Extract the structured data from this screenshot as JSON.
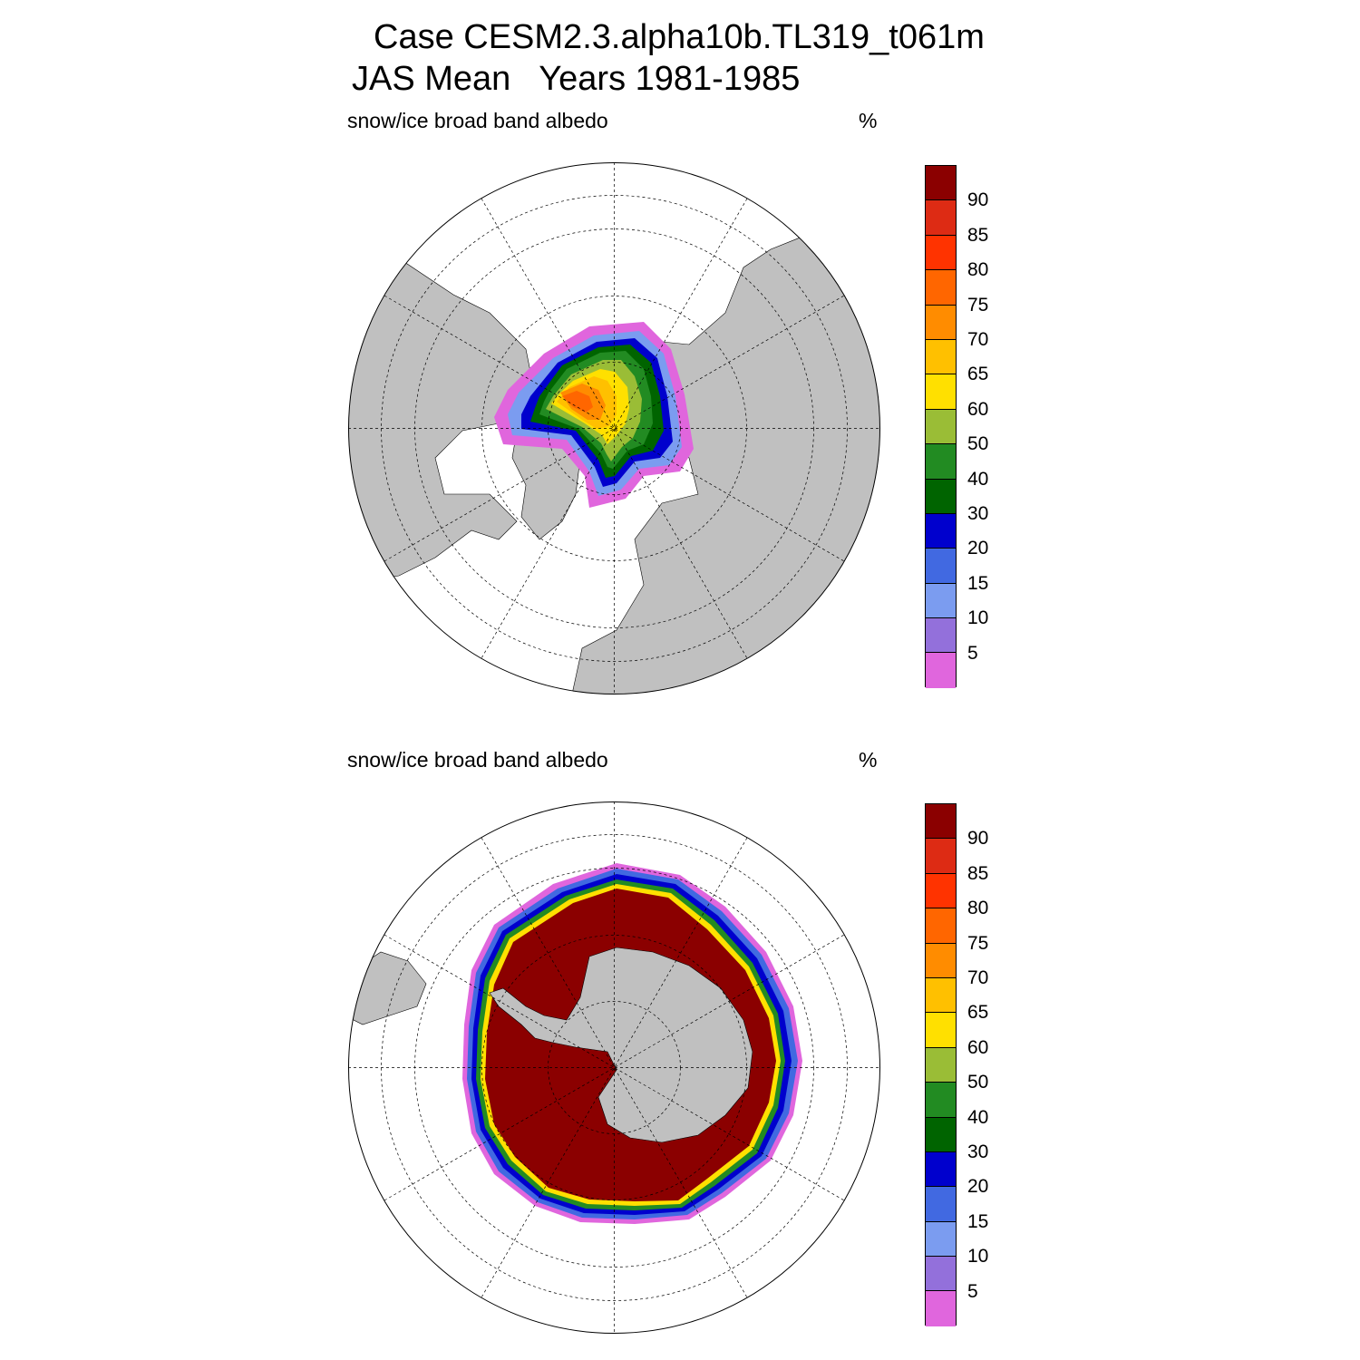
{
  "figure": {
    "title_line_1": "Case CESM2.3.alpha10b.TL319_t061m",
    "title_line_2": "JAS Mean   Years 1981-1985"
  },
  "panels": [
    {
      "hemisphere": "north",
      "variable": "snow/ice broad band albedo",
      "units": "%"
    },
    {
      "hemisphere": "south",
      "variable": "snow/ice broad band albedo",
      "units": "%"
    }
  ],
  "colorbar": {
    "labels": [
      "5",
      "10",
      "15",
      "20",
      "30",
      "40",
      "50",
      "60",
      "65",
      "70",
      "75",
      "80",
      "85",
      "90"
    ],
    "colors": [
      "#e066dd",
      "#9370db",
      "#7b9cf0",
      "#4169e1",
      "#0000cd",
      "#006400",
      "#228b22",
      "#9abd36",
      "#ffe000",
      "#ffc000",
      "#ff8c00",
      "#ff6600",
      "#ff3300",
      "#dd2b14",
      "#8b0000"
    ]
  },
  "map_colors": {
    "land": "#c0c0c0",
    "ocean": "#ffffff",
    "grid_line": "#000000"
  }
}
